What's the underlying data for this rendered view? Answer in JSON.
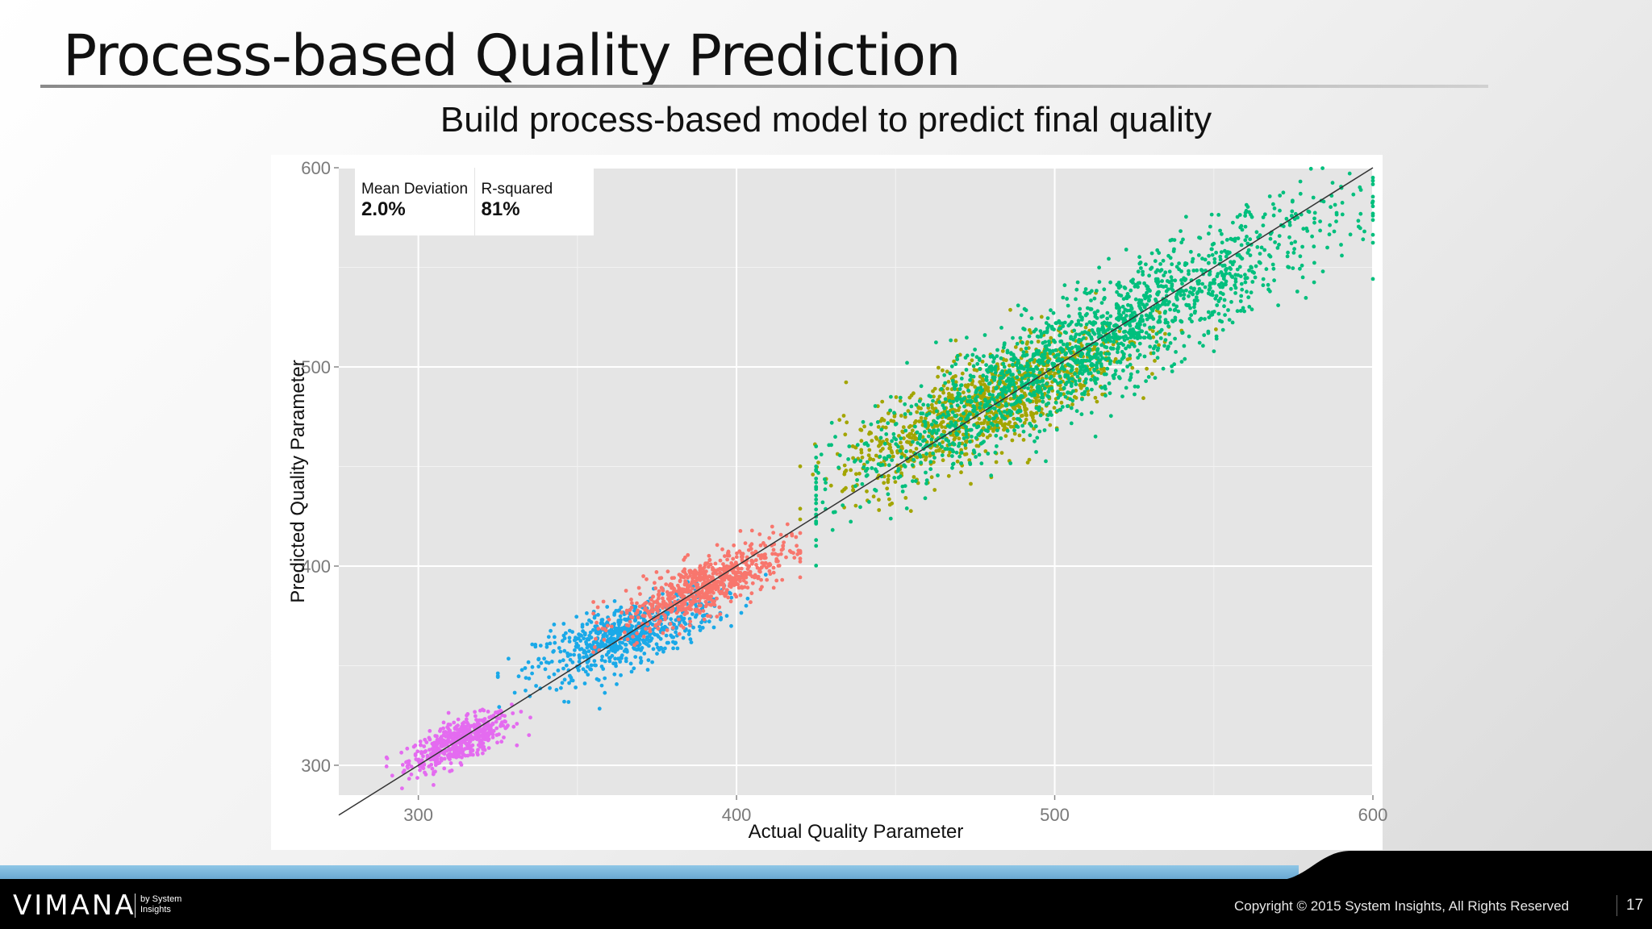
{
  "slide": {
    "title": "Process-based Quality Prediction",
    "subtitle": "Build process-based model to predict final quality"
  },
  "stats": {
    "mean_deviation_label": "Mean Deviation",
    "mean_deviation_value": "2.0%",
    "r_squared_label": "R-squared",
    "r_squared_value": "81%"
  },
  "chart_data": {
    "type": "scatter",
    "xlabel": "Actual Quality Parameter",
    "ylabel": "Predicted Quality Parameter",
    "xlim": [
      275,
      600
    ],
    "ylim": [
      285,
      600
    ],
    "x_ticks": [
      300,
      400,
      500,
      600
    ],
    "y_ticks": [
      300,
      400,
      500,
      600
    ],
    "x_tick_labels": [
      "300",
      "400",
      "500",
      "600"
    ],
    "y_tick_labels": [
      "300",
      "400",
      "500",
      "600"
    ],
    "grid": true,
    "background": "#e5e5e5",
    "reference_line": [
      [
        275,
        275
      ],
      [
        600,
        600
      ]
    ],
    "series": [
      {
        "color": "#e46bf0",
        "n": 520,
        "x_range": [
          290,
          336
        ],
        "center": [
          313,
          312
        ],
        "sd": [
          8,
          5
        ],
        "slope": 0.6
      },
      {
        "color": "#1aa9e8",
        "n": 700,
        "x_range": [
          325,
          420
        ],
        "center": [
          365,
          365
        ],
        "sd": [
          14,
          8
        ],
        "slope": 0.55
      },
      {
        "color": "#f8766d",
        "n": 700,
        "x_range": [
          355,
          420
        ],
        "center": [
          390,
          390
        ],
        "sd": [
          13,
          7
        ],
        "slope": 0.65
      },
      {
        "color": "#a3a500",
        "n": 1000,
        "x_range": [
          420,
          560
        ],
        "center": [
          478,
          480
        ],
        "sd": [
          22,
          12
        ],
        "slope": 0.7
      },
      {
        "color": "#00bf7d",
        "n": 1800,
        "x_range": [
          425,
          600
        ],
        "center": [
          510,
          510
        ],
        "sd": [
          38,
          14
        ],
        "slope": 0.85
      }
    ]
  },
  "footer": {
    "logo": "VIMANA",
    "logo_sub_line1": "by System",
    "logo_sub_line2": "Insights",
    "copyright": "Copyright © 2015 System Insights, All Rights Reserved",
    "page_number": "17",
    "stripe_color": "#7ab6dc"
  }
}
